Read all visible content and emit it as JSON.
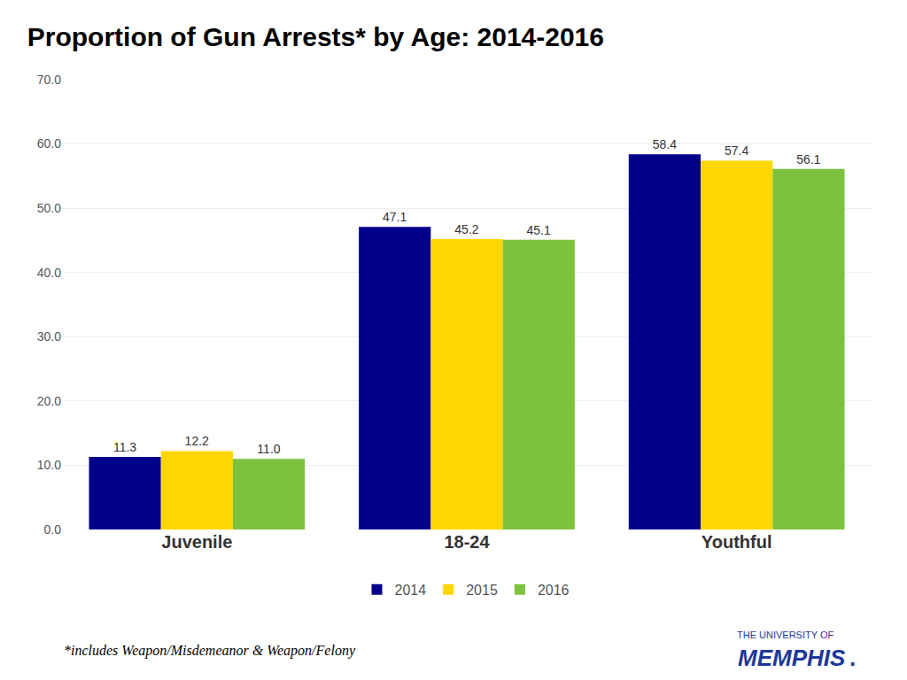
{
  "chart_data": {
    "type": "bar",
    "title": "Proportion of Gun Arrests* by Age: 2014-2016",
    "categories": [
      "Juvenile",
      "18-24",
      "Youthful"
    ],
    "series": [
      {
        "name": "2014",
        "color": "#00008B",
        "values": [
          11.3,
          47.1,
          58.4
        ],
        "value_labels": [
          "11.3",
          "47.1",
          "58.4"
        ]
      },
      {
        "name": "2015",
        "color": "#FFD700",
        "values": [
          12.2,
          45.2,
          57.4
        ],
        "value_labels": [
          "12.2",
          "45.2",
          "57.4"
        ]
      },
      {
        "name": "2016",
        "color": "#7DC23E",
        "values": [
          11.0,
          45.1,
          56.1
        ],
        "value_labels": [
          "11.0",
          "45.1",
          "56.1"
        ]
      }
    ],
    "ylim": [
      0,
      70.0
    ],
    "yticks": [
      {
        "value": 0.0,
        "label": "0.0"
      },
      {
        "value": 10.0,
        "label": "10.0"
      },
      {
        "value": 20.0,
        "label": "20.0"
      },
      {
        "value": 30.0,
        "label": "30.0"
      },
      {
        "value": 40.0,
        "label": "40.0"
      },
      {
        "value": 50.0,
        "label": "50.0"
      },
      {
        "value": 60.0,
        "label": "60.0"
      },
      {
        "value": 70.0,
        "label": "70.0"
      }
    ],
    "grid": true,
    "legend": "bottom",
    "data_labels": true,
    "annotations": [
      {
        "text": "*includes Weapon/Misdemeanor & Weapon/Felony"
      },
      {
        "text": "THE UNIVERSITY OF"
      },
      {
        "text": "MEMPHIS"
      },
      {
        "text": "."
      }
    ]
  }
}
